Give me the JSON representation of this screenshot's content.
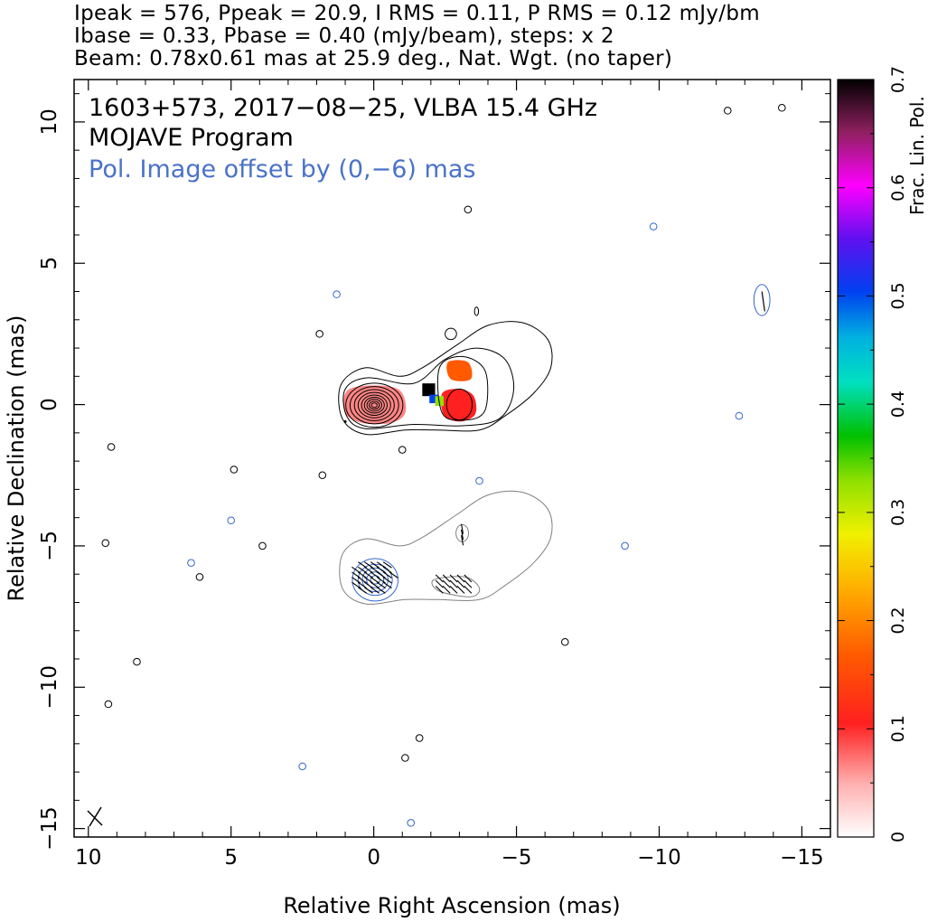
{
  "header": {
    "line1": "Ipeak = 576, Ppeak = 20.9, I RMS = 0.11, P RMS = 0.12 mJy/bm",
    "line2": "Ibase = 0.33, Pbase = 0.40 (mJy/beam), steps: x 2",
    "line3": "Beam: 0.78x0.61 mas at 25.9 deg., Nat. Wgt. (no taper)"
  },
  "chart_data": {
    "type": "contour",
    "title_lines": [
      "1603+573, 2017−08−25, VLBA 15.4 GHz",
      "MOJAVE Program"
    ],
    "pol_note": "Pol. Image offset by (0,−6) mas",
    "pol_offset_mas": [
      0,
      -6
    ],
    "xlabel": "Relative Right Ascension (mas)",
    "ylabel": "Relative Declination (mas)",
    "xlim": [
      10.5,
      -16
    ],
    "ylim": [
      -15.3,
      11.5
    ],
    "x_ticks": [
      10,
      5,
      0,
      -5,
      -10,
      -15
    ],
    "x_tick_labels": [
      "10",
      "5",
      "0",
      "−5",
      "−10",
      "−15"
    ],
    "y_ticks": [
      10,
      5,
      0,
      -5,
      -10,
      -15
    ],
    "y_tick_labels": [
      "10",
      "5",
      "0",
      "−5",
      "−10",
      "−15"
    ],
    "stokes_i": {
      "peak_mJy_per_beam": 576,
      "base_mJy_per_beam": 0.33,
      "rms_mJy_per_beam": 0.11,
      "core_position_mas": [
        0,
        0
      ],
      "jet_knot_position_mas": [
        -3,
        0
      ],
      "contour_levels_mJy_per_beam": [
        0.33,
        0.66,
        1.32,
        2.64,
        5.28,
        10.56,
        21.12,
        42.24,
        84.48,
        168.96,
        337.92
      ]
    },
    "polarization": {
      "peak_mJy_per_beam": 20.9,
      "base_mJy_per_beam": 0.4,
      "rms_mJy_per_beam": 0.12,
      "frac_pol_regions": [
        {
          "ra": 0.0,
          "dec": 0.0,
          "frac": 0.12
        },
        {
          "ra": -1.9,
          "dec": 0.55,
          "frac": 0.7
        },
        {
          "ra": -2.2,
          "dec": 0.2,
          "frac": 0.3
        },
        {
          "ra": -3.0,
          "dec": 1.2,
          "frac": 0.2
        },
        {
          "ra": -3.0,
          "dec": 0.0,
          "frac": 0.1
        }
      ]
    },
    "beam": {
      "major_mas": 0.78,
      "minor_mas": 0.61,
      "pa_deg": 25.9
    },
    "colorbar": {
      "label": "Frac. Lin. Pol.",
      "range": [
        0,
        0.7
      ],
      "ticks": [
        0,
        0.1,
        0.2,
        0.3,
        0.4,
        0.5,
        0.6,
        0.7
      ],
      "tick_labels": [
        "0",
        "0.1",
        "0.2",
        "0.3",
        "0.4",
        "0.5",
        "0.6",
        "0.7"
      ]
    },
    "colors": {
      "stokes_i_contours": "#000000",
      "pol_contours": "#3366cc",
      "pol_total_contour": "#808080",
      "pol_note_text": "#4a72c8"
    }
  }
}
